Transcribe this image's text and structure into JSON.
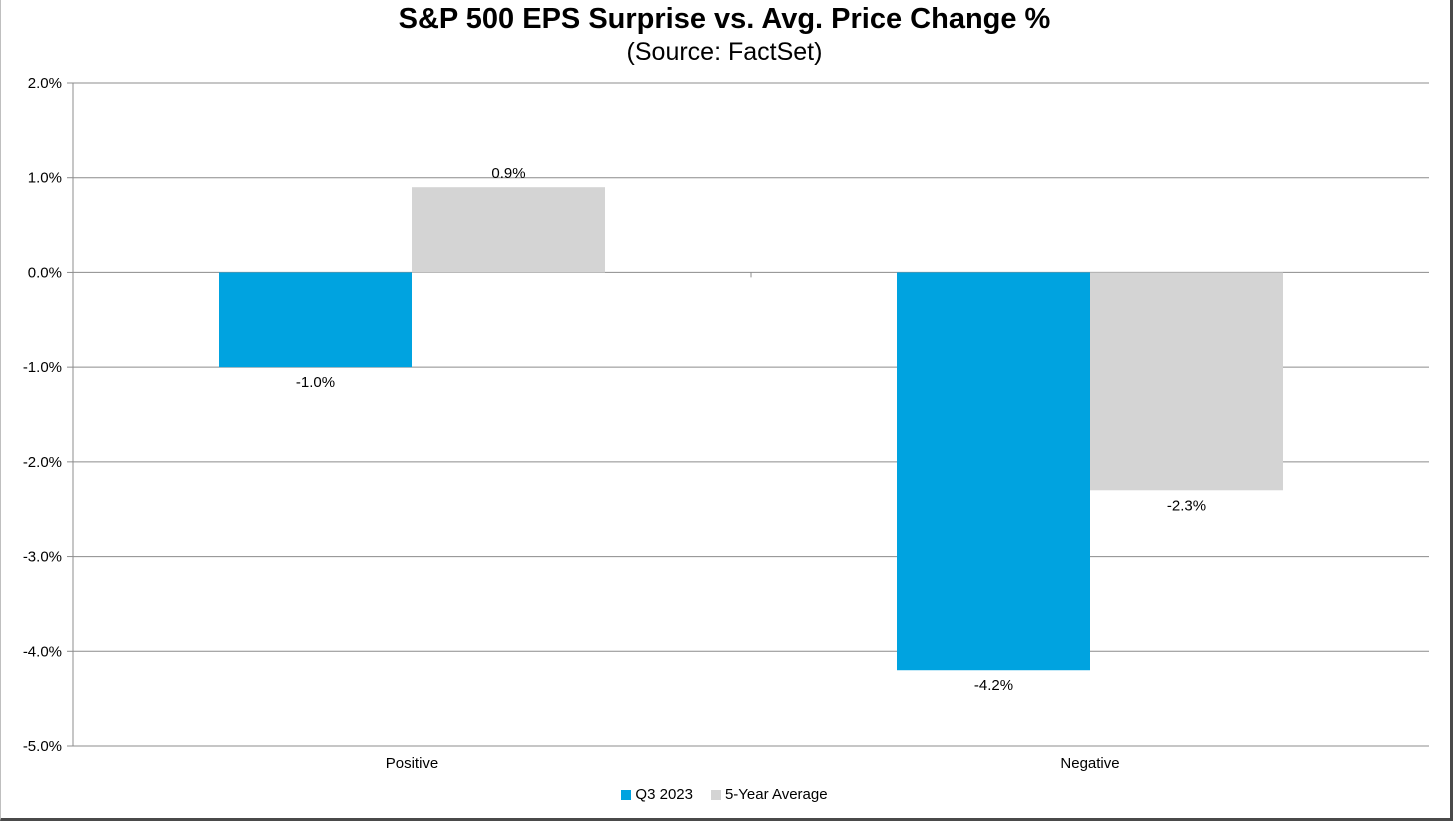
{
  "chart_data": {
    "type": "bar",
    "title": "S&P 500 EPS Surprise vs. Avg. Price Change %",
    "subtitle": "(Source: FactSet)",
    "categories": [
      "Positive",
      "Negative"
    ],
    "series": [
      {
        "name": "Q3 2023",
        "values": [
          -1.0,
          -4.2
        ],
        "labels": [
          "-1.0%",
          "-4.2%"
        ],
        "color": "#00a3e0"
      },
      {
        "name": "5-Year Average",
        "values": [
          0.9,
          -2.3
        ],
        "labels": [
          "0.9%",
          "-2.3%"
        ],
        "color": "#d4d4d4"
      }
    ],
    "ylim": [
      -5.0,
      2.0
    ],
    "yticks": [
      2.0,
      1.0,
      0.0,
      -1.0,
      -2.0,
      -3.0,
      -4.0,
      -5.0
    ],
    "ytick_labels": [
      "2.0%",
      "1.0%",
      "0.0%",
      "-1.0%",
      "-2.0%",
      "-3.0%",
      "-4.0%",
      "-5.0%"
    ],
    "xlabel": "",
    "ylabel": "",
    "grid": true,
    "legend_position": "bottom"
  }
}
